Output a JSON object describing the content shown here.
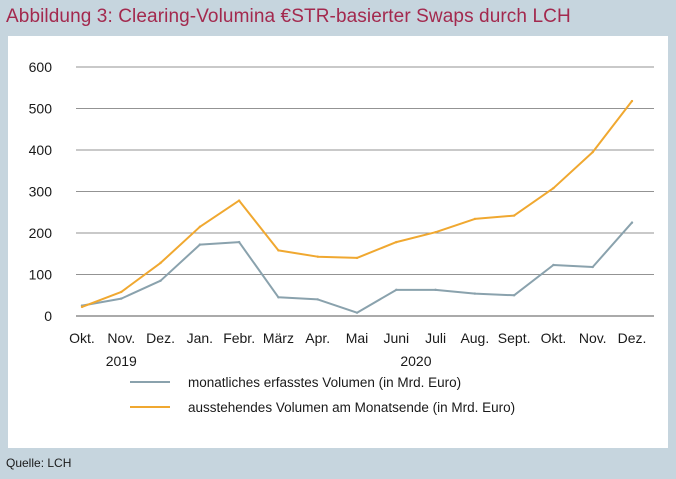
{
  "title": "Abbildung 3: Clearing-Volumina €STR-basierter Swaps durch LCH",
  "source": "Quelle: LCH",
  "chart_data": {
    "type": "line",
    "title": "",
    "xlabel": "",
    "ylabel": "",
    "ylim": [
      0,
      600
    ],
    "yticks": [
      0,
      100,
      200,
      300,
      400,
      500,
      600
    ],
    "grid": true,
    "legend_position": "bottom",
    "categories": [
      "Okt.",
      "Nov.",
      "Dez.",
      "Jan.",
      "Febr.",
      "März",
      "Apr.",
      "Mai",
      "Juni",
      "Juli",
      "Aug.",
      "Sept.",
      "Okt.",
      "Nov.",
      "Dez."
    ],
    "year_labels": [
      {
        "label": "2019",
        "category_index": 1
      },
      {
        "label": "2020",
        "category_index": 8.5
      }
    ],
    "series": [
      {
        "name": "monatliches erfasstes Volumen (in Mrd. Euro)",
        "color": "#8aa2ad",
        "values": [
          25,
          42,
          85,
          172,
          178,
          45,
          40,
          8,
          63,
          63,
          54,
          50,
          123,
          118,
          225
        ]
      },
      {
        "name": "ausstehendes Volumen am Monatsende (in Mrd. Euro)",
        "color": "#f0a830",
        "values": [
          22,
          58,
          128,
          215,
          278,
          158,
          143,
          140,
          178,
          202,
          234,
          242,
          308,
          395,
          518
        ]
      }
    ]
  }
}
